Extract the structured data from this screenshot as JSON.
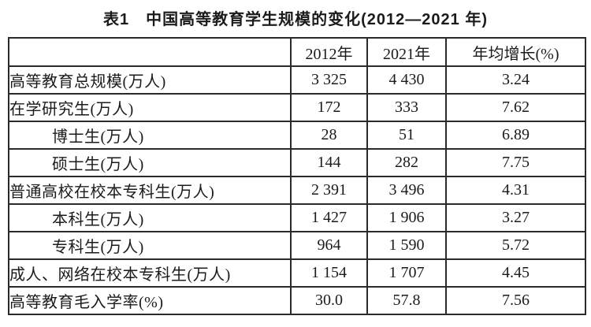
{
  "caption": "表1　中国高等教育学生规模的变化(2012—2021 年)",
  "table": {
    "headers": [
      "",
      "2012年",
      "2021年",
      "年均增长(%)"
    ],
    "rows": [
      {
        "label": "高等教育总规模(万人)",
        "y2012": "3 325",
        "y2021": "4 430",
        "growth": "3.24"
      },
      {
        "label": "在学研究生(万人)",
        "y2012": "172",
        "y2021": "333",
        "growth": "7.62"
      },
      {
        "label": "博士生(万人)",
        "y2012": "28",
        "y2021": "51",
        "growth": "6.89"
      },
      {
        "label": "硕士生(万人)",
        "y2012": "144",
        "y2021": "282",
        "growth": "7.75"
      },
      {
        "label": "普通高校在校本专科生(万人)",
        "y2012": "2 391",
        "y2021": "3 496",
        "growth": "4.31"
      },
      {
        "label": "本科生(万人)",
        "y2012": "1 427",
        "y2021": "1 906",
        "growth": "3.27"
      },
      {
        "label": "专科生(万人)",
        "y2012": "964",
        "y2021": "1 590",
        "growth": "5.72"
      },
      {
        "label": "成人、网络在校本专科生(万人)",
        "y2012": "1 154",
        "y2021": "1 707",
        "growth": "4.45"
      },
      {
        "label": "高等教育毛入学率(%)",
        "y2012": "30.0",
        "y2021": "57.8",
        "growth": "7.56"
      }
    ]
  }
}
